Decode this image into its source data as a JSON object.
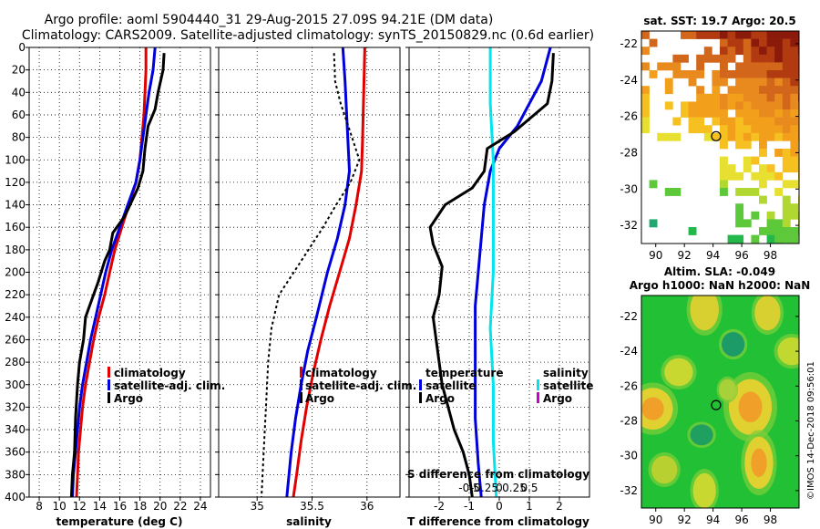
{
  "title_line1": "Argo profile: aoml 5904440_31 29-Aug-2015 27.09S 94.21E (DM data)",
  "title_line2": "Climatology: CARS2009. Satellite-adjusted climatology: synTS_20150829.nc (0.6d earlier)",
  "watermark": "©IMOS 14-Dec-2018 09:56:01",
  "colors": {
    "climatology": "#e00000",
    "satellite_adj": "#0000dd",
    "argo": "#000000",
    "salinity_diff": "#00e5ee",
    "argo_salinity_diff": "#cc00cc"
  },
  "chart_data": [
    {
      "type": "line",
      "id": "temperature",
      "xlabel": "temperature (deg C)",
      "ylabel": "",
      "xlim": [
        7,
        25
      ],
      "ylim": [
        400,
        0
      ],
      "xticks": [
        8,
        10,
        12,
        14,
        16,
        18,
        20,
        22,
        24
      ],
      "yticks": [
        0,
        20,
        40,
        60,
        80,
        100,
        120,
        140,
        160,
        180,
        200,
        220,
        240,
        260,
        280,
        300,
        320,
        340,
        360,
        380,
        400
      ],
      "grid": true,
      "legend": [
        "climatology",
        "satellite-adj. clim.",
        "Argo"
      ],
      "series": [
        {
          "name": "climatology",
          "color": "#e00000",
          "dash": "",
          "points": [
            [
              18.6,
              0
            ],
            [
              18.6,
              20
            ],
            [
              18.5,
              40
            ],
            [
              18.4,
              60
            ],
            [
              18.2,
              80
            ],
            [
              18.0,
              100
            ],
            [
              17.6,
              120
            ],
            [
              16.9,
              140
            ],
            [
              16.2,
              160
            ],
            [
              15.5,
              180
            ],
            [
              15.0,
              200
            ],
            [
              14.5,
              220
            ],
            [
              13.9,
              240
            ],
            [
              13.4,
              260
            ],
            [
              13.0,
              280
            ],
            [
              12.6,
              300
            ],
            [
              12.3,
              320
            ],
            [
              12.1,
              340
            ],
            [
              11.9,
              360
            ],
            [
              11.8,
              380
            ],
            [
              11.7,
              400
            ]
          ]
        },
        {
          "name": "satellite-adj. clim.",
          "color": "#0000dd",
          "dash": "",
          "points": [
            [
              19.5,
              0
            ],
            [
              19.3,
              20
            ],
            [
              18.9,
              40
            ],
            [
              18.6,
              60
            ],
            [
              18.3,
              80
            ],
            [
              18.0,
              100
            ],
            [
              17.6,
              120
            ],
            [
              16.8,
              140
            ],
            [
              16.0,
              160
            ],
            [
              15.2,
              180
            ],
            [
              14.6,
              200
            ],
            [
              14.1,
              220
            ],
            [
              13.6,
              240
            ],
            [
              13.1,
              260
            ],
            [
              12.7,
              280
            ],
            [
              12.3,
              300
            ],
            [
              12.0,
              320
            ],
            [
              11.8,
              340
            ],
            [
              11.6,
              360
            ],
            [
              11.4,
              380
            ],
            [
              11.3,
              400
            ]
          ]
        },
        {
          "name": "Argo",
          "color": "#000000",
          "dash": "",
          "points": [
            [
              20.4,
              5
            ],
            [
              20.3,
              20
            ],
            [
              19.8,
              40
            ],
            [
              19.5,
              55
            ],
            [
              18.8,
              70
            ],
            [
              18.5,
              90
            ],
            [
              18.3,
              110
            ],
            [
              17.8,
              125
            ],
            [
              16.5,
              150
            ],
            [
              15.3,
              165
            ],
            [
              15.0,
              180
            ],
            [
              14.5,
              190
            ],
            [
              13.8,
              210
            ],
            [
              13.2,
              225
            ],
            [
              12.6,
              240
            ],
            [
              12.4,
              260
            ],
            [
              12.0,
              280
            ],
            [
              11.8,
              300
            ],
            [
              11.6,
              330
            ],
            [
              11.5,
              360
            ],
            [
              11.3,
              380
            ],
            [
              11.2,
              400
            ]
          ]
        }
      ]
    },
    {
      "type": "line",
      "id": "salinity",
      "xlabel": "salinity",
      "ylabel": "",
      "xlim": [
        34.65,
        36.3
      ],
      "ylim": [
        400,
        0
      ],
      "xticks": [
        35,
        35.5,
        36
      ],
      "xticklabels": [
        "35",
        "35.5",
        "36"
      ],
      "grid": true,
      "legend": [
        "climatology",
        "satellite-adj. clim.",
        "Argo"
      ],
      "series": [
        {
          "name": "climatology",
          "color": "#e00000",
          "dash": "",
          "points": [
            [
              35.98,
              0
            ],
            [
              35.97,
              40
            ],
            [
              35.96,
              80
            ],
            [
              35.95,
              110
            ],
            [
              35.9,
              140
            ],
            [
              35.84,
              170
            ],
            [
              35.75,
              200
            ],
            [
              35.66,
              230
            ],
            [
              35.58,
              260
            ],
            [
              35.51,
              290
            ],
            [
              35.45,
              320
            ],
            [
              35.4,
              350
            ],
            [
              35.36,
              380
            ],
            [
              35.33,
              400
            ]
          ]
        },
        {
          "name": "satellite-adj. clim.",
          "color": "#0000dd",
          "dash": "",
          "points": [
            [
              35.78,
              0
            ],
            [
              35.8,
              30
            ],
            [
              35.82,
              70
            ],
            [
              35.84,
              110
            ],
            [
              35.8,
              140
            ],
            [
              35.73,
              170
            ],
            [
              35.64,
              200
            ],
            [
              35.54,
              240
            ],
            [
              35.46,
              270
            ],
            [
              35.4,
              300
            ],
            [
              35.35,
              330
            ],
            [
              35.31,
              360
            ],
            [
              35.27,
              400
            ]
          ]
        },
        {
          "name": "Argo",
          "color": "#000000",
          "dash": "3,3",
          "points": [
            [
              35.7,
              5
            ],
            [
              35.71,
              30
            ],
            [
              35.76,
              50
            ],
            [
              35.83,
              70
            ],
            [
              35.93,
              100
            ],
            [
              35.85,
              120
            ],
            [
              35.72,
              140
            ],
            [
              35.6,
              160
            ],
            [
              35.4,
              190
            ],
            [
              35.2,
              220
            ],
            [
              35.13,
              250
            ],
            [
              35.1,
              280
            ],
            [
              35.08,
              320
            ],
            [
              35.06,
              360
            ],
            [
              35.04,
              400
            ]
          ]
        }
      ]
    },
    {
      "type": "line",
      "id": "difference",
      "xlabel": "T difference from climatology",
      "top_axis_label": "S difference from climatology",
      "ylabel": "",
      "xlim": [
        -3,
        3
      ],
      "ylim": [
        400,
        0
      ],
      "xticks": [
        -2,
        -1,
        0,
        1,
        2
      ],
      "xticklabels": [
        "-2",
        "-1",
        "0",
        "1",
        "2"
      ],
      "s_xticks": [
        -1,
        -0.5,
        0,
        0.5,
        1
      ],
      "s_xticklabels": [
        "-0.5",
        "-0.25",
        "0",
        "0.25",
        "0.5"
      ],
      "grid": true,
      "legend_temperature_title": "temperature",
      "legend_salinity_title": "salinity",
      "legend": [
        "satellite",
        "Argo",
        "satellite",
        "Argo"
      ],
      "series": [
        {
          "name": "satellite",
          "quantity": "temperature",
          "color": "#0000dd",
          "dash": "",
          "points": [
            [
              1.7,
              0
            ],
            [
              1.4,
              30
            ],
            [
              1.0,
              50
            ],
            [
              0.6,
              70
            ],
            [
              0.0,
              90
            ],
            [
              -0.3,
              110
            ],
            [
              -0.5,
              140
            ],
            [
              -0.6,
              170
            ],
            [
              -0.7,
              200
            ],
            [
              -0.8,
              230
            ],
            [
              -0.8,
              280
            ],
            [
              -0.8,
              330
            ],
            [
              -0.7,
              370
            ],
            [
              -0.6,
              400
            ]
          ]
        },
        {
          "name": "satellite",
          "quantity": "salinity",
          "color": "#00e5ee",
          "dash": "",
          "points": [
            [
              -0.3,
              0
            ],
            [
              -0.3,
              50
            ],
            [
              -0.2,
              100
            ],
            [
              -0.2,
              150
            ],
            [
              -0.2,
              200
            ],
            [
              -0.3,
              250
            ],
            [
              -0.2,
              300
            ],
            [
              -0.2,
              350
            ],
            [
              -0.1,
              400
            ]
          ]
        },
        {
          "name": "Argo",
          "quantity": "temperature",
          "color": "#000000",
          "dash": "",
          "points": [
            [
              1.8,
              5
            ],
            [
              1.75,
              30
            ],
            [
              1.6,
              50
            ],
            [
              0.5,
              75
            ],
            [
              -0.4,
              90
            ],
            [
              -0.5,
              110
            ],
            [
              -0.9,
              125
            ],
            [
              -1.8,
              140
            ],
            [
              -2.3,
              160
            ],
            [
              -2.2,
              175
            ],
            [
              -1.9,
              195
            ],
            [
              -2.0,
              220
            ],
            [
              -2.2,
              240
            ],
            [
              -2.1,
              260
            ],
            [
              -2.0,
              280
            ],
            [
              -1.9,
              300
            ],
            [
              -1.7,
              320
            ],
            [
              -1.5,
              340
            ],
            [
              -1.2,
              360
            ],
            [
              -1.0,
              380
            ],
            [
              -0.9,
              400
            ]
          ]
        }
      ]
    },
    {
      "type": "heatmap",
      "id": "sst_map",
      "title": "sat. SST: 19.7 Argo: 20.5",
      "xlim": [
        89,
        100
      ],
      "ylim": [
        -33,
        -21.3
      ],
      "xticks": [
        90,
        92,
        94,
        96,
        98
      ],
      "yticks": [
        -22,
        -24,
        -26,
        -28,
        -30,
        -32
      ],
      "marker": {
        "lon": 94.21,
        "lat": -27.09
      }
    },
    {
      "type": "heatmap",
      "id": "sla_map",
      "title_line1": "Altim. SLA: -0.049",
      "title_line2": "Argo h1000: NaN h2000: NaN",
      "xlim": [
        89,
        100
      ],
      "ylim": [
        -33,
        -20.8
      ],
      "xticks": [
        90,
        92,
        94,
        96,
        98
      ],
      "yticks": [
        -22,
        -24,
        -26,
        -28,
        -30,
        -32
      ],
      "marker": {
        "lon": 94.21,
        "lat": -27.09
      }
    }
  ]
}
